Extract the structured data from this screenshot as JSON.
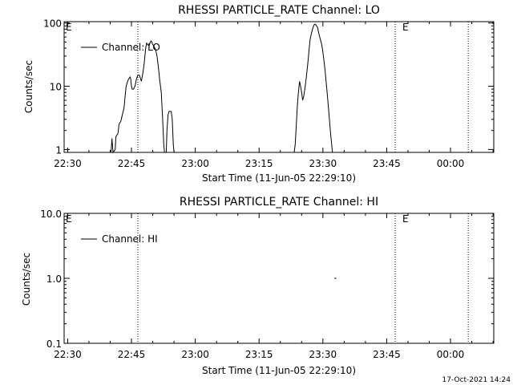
{
  "footer_timestamp": "17-Oct-2021 14:24",
  "chart_data": [
    {
      "type": "line",
      "title": "RHESSI PARTICLE_RATE Channel: LO",
      "xlabel": "Start Time (11-Jun-05 22:29:10)",
      "ylabel": "Counts/sec",
      "yscale": "log",
      "xlim": [
        "22:29:10",
        "00:10:10"
      ],
      "ylim": [
        0.9,
        105
      ],
      "x_tick_labels": [
        "22:30",
        "22:45",
        "23:00",
        "23:15",
        "23:30",
        "23:45",
        "00:00"
      ],
      "y_tick_labels": [
        "1",
        "10",
        "100"
      ],
      "legend": {
        "entries": [
          "Channel: LO"
        ],
        "placement": "top-left"
      },
      "event_markers": [
        {
          "time": "22:46:30",
          "label": ""
        },
        {
          "time": "23:47:00",
          "label": "E"
        },
        {
          "time": "00:04:10",
          "label": ""
        }
      ],
      "range_labels": [
        "E"
      ],
      "series": [
        {
          "name": "Channel: LO",
          "segments": [
            [
              [
                "22:40:10",
                0.9
              ],
              [
                "22:40:15",
                1.0
              ],
              [
                "22:40:25",
                1.5
              ],
              [
                "22:40:40",
                0.9
              ],
              [
                "22:41:10",
                1.0
              ],
              [
                "22:41:20",
                1.6
              ],
              [
                "22:41:50",
                1.8
              ],
              [
                "22:42:05",
                2.5
              ],
              [
                "22:42:30",
                2.8
              ],
              [
                "22:42:50",
                3.5
              ],
              [
                "22:43:15",
                4.5
              ],
              [
                "22:43:30",
                7
              ],
              [
                "22:43:45",
                10
              ],
              [
                "22:44:05",
                12
              ],
              [
                "22:44:20",
                13
              ],
              [
                "22:44:40",
                14
              ],
              [
                "22:44:50",
                13
              ],
              [
                "22:45:00",
                10
              ],
              [
                "22:45:10",
                9
              ],
              [
                "22:45:30",
                9
              ],
              [
                "22:45:50",
                10
              ],
              [
                "22:46:10",
                13
              ],
              [
                "22:46:30",
                15
              ],
              [
                "22:46:50",
                15
              ],
              [
                "22:47:10",
                13
              ],
              [
                "22:47:20",
                12
              ],
              [
                "22:47:40",
                16
              ],
              [
                "22:48:00",
                23
              ],
              [
                "22:48:10",
                30
              ],
              [
                "22:48:20",
                40
              ],
              [
                "22:48:35",
                48
              ],
              [
                "22:48:50",
                45
              ],
              [
                "22:49:10",
                44
              ],
              [
                "22:49:25",
                50
              ],
              [
                "22:49:40",
                52
              ],
              [
                "22:50:00",
                46
              ],
              [
                "22:50:20",
                42
              ],
              [
                "22:50:40",
                38
              ],
              [
                "22:51:00",
                30
              ],
              [
                "22:51:20",
                20
              ],
              [
                "22:51:40",
                12
              ],
              [
                "22:52:00",
                8
              ],
              [
                "22:52:20",
                3
              ],
              [
                "22:52:35",
                1.2
              ],
              [
                "22:52:45",
                0.9
              ]
            ],
            [
              [
                "22:53:10",
                0.9
              ],
              [
                "22:53:20",
                2
              ],
              [
                "22:53:35",
                3.5
              ],
              [
                "22:53:50",
                4
              ],
              [
                "22:54:20",
                4
              ],
              [
                "22:54:35",
                3
              ],
              [
                "22:54:50",
                1.2
              ],
              [
                "22:55:00",
                0.9
              ]
            ],
            [
              [
                "23:23:15",
                0.9
              ],
              [
                "23:23:30",
                1.2
              ],
              [
                "23:23:45",
                2.5
              ],
              [
                "23:24:00",
                5
              ],
              [
                "23:24:15",
                8
              ],
              [
                "23:24:30",
                12
              ],
              [
                "23:24:45",
                10
              ],
              [
                "23:25:00",
                8
              ],
              [
                "23:25:15",
                6
              ],
              [
                "23:25:30",
                7
              ],
              [
                "23:25:45",
                9
              ],
              [
                "23:26:00",
                12
              ],
              [
                "23:26:15",
                17
              ],
              [
                "23:26:30",
                25
              ],
              [
                "23:26:45",
                38
              ],
              [
                "23:27:00",
                55
              ],
              [
                "23:27:20",
                70
              ],
              [
                "23:27:40",
                85
              ],
              [
                "23:28:00",
                95
              ],
              [
                "23:28:15",
                95
              ],
              [
                "23:28:30",
                90
              ],
              [
                "23:28:45",
                85
              ],
              [
                "23:29:00",
                70
              ],
              [
                "23:29:15",
                60
              ],
              [
                "23:29:30",
                52
              ],
              [
                "23:29:45",
                45
              ],
              [
                "23:30:00",
                35
              ],
              [
                "23:30:15",
                25
              ],
              [
                "23:30:30",
                18
              ],
              [
                "23:30:45",
                12
              ],
              [
                "23:31:00",
                8
              ],
              [
                "23:31:15",
                5
              ],
              [
                "23:31:30",
                3.2
              ],
              [
                "23:31:45",
                2
              ],
              [
                "23:32:00",
                1.3
              ],
              [
                "23:32:15",
                0.9
              ]
            ]
          ]
        }
      ]
    },
    {
      "type": "line",
      "title": "RHESSI PARTICLE_RATE Channel: HI",
      "xlabel": "Start Time (11-Jun-05 22:29:10)",
      "ylabel": "Counts/sec",
      "yscale": "log",
      "xlim": [
        "22:29:10",
        "00:10:10"
      ],
      "ylim": [
        0.1,
        10
      ],
      "x_tick_labels": [
        "22:30",
        "22:45",
        "23:00",
        "23:15",
        "23:30",
        "23:45",
        "00:00"
      ],
      "y_tick_labels": [
        "0.1",
        "1.0",
        "10.0"
      ],
      "legend": {
        "entries": [
          "Channel: HI"
        ],
        "placement": "top-left"
      },
      "event_markers": [
        {
          "time": "22:46:30",
          "label": ""
        },
        {
          "time": "23:47:00",
          "label": "E"
        },
        {
          "time": "00:04:10",
          "label": ""
        }
      ],
      "range_labels": [
        "E"
      ],
      "series": [
        {
          "name": "Channel: HI",
          "segments": [
            [
              [
                "23:32:40",
                1.0
              ],
              [
                "23:33:10",
                1.0
              ]
            ]
          ]
        }
      ]
    }
  ]
}
